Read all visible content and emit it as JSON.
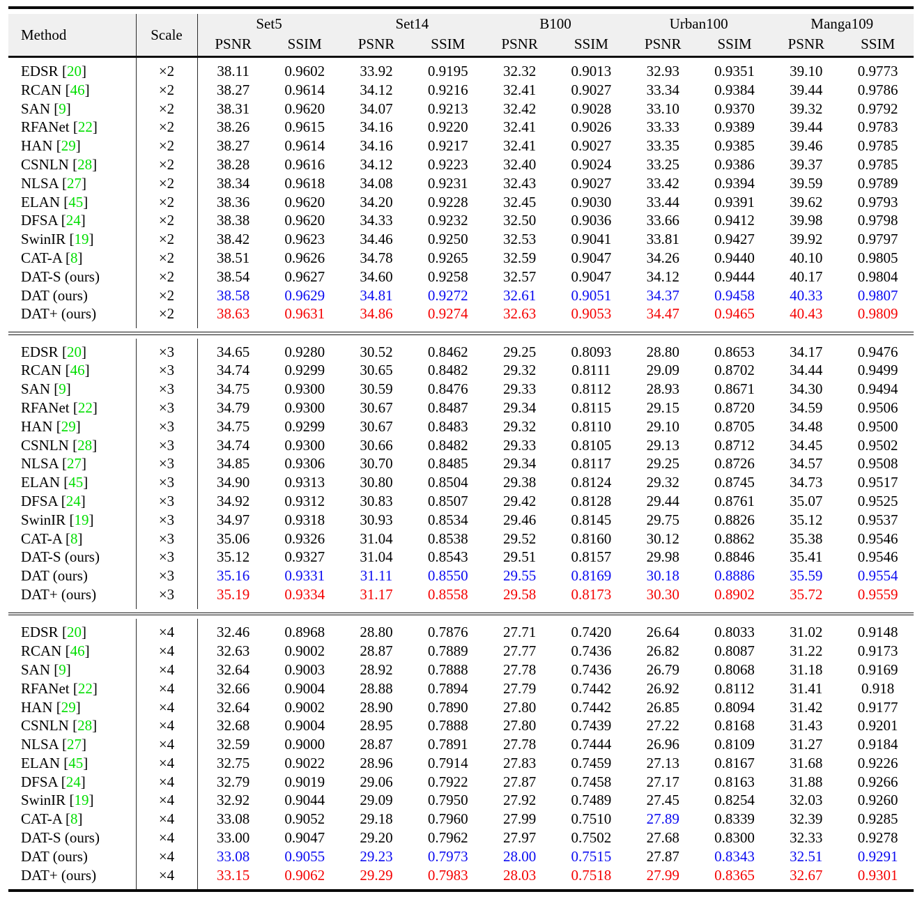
{
  "header": {
    "method": "Method",
    "scale": "Scale",
    "groups": [
      {
        "label": "Set5"
      },
      {
        "label": "Set14"
      },
      {
        "label": "B100"
      },
      {
        "label": "Urban100"
      },
      {
        "label": "Manga109"
      }
    ],
    "metrics": [
      "PSNR",
      "SSIM"
    ]
  },
  "colors": {
    "black": "#000000",
    "green": "#00de00",
    "blue": "#0a0af0",
    "red": "#f40000"
  },
  "blocks": [
    {
      "scale": "×2",
      "rows": [
        {
          "method": "EDSR",
          "cite": "20",
          "values": [
            "38.11",
            "0.9602",
            "33.92",
            "0.9195",
            "32.32",
            "0.9013",
            "32.93",
            "0.9351",
            "39.10",
            "0.9773"
          ]
        },
        {
          "method": "RCAN",
          "cite": "46",
          "values": [
            "38.27",
            "0.9614",
            "34.12",
            "0.9216",
            "32.41",
            "0.9027",
            "33.34",
            "0.9384",
            "39.44",
            "0.9786"
          ]
        },
        {
          "method": "SAN",
          "cite": "9",
          "values": [
            "38.31",
            "0.9620",
            "34.07",
            "0.9213",
            "32.42",
            "0.9028",
            "33.10",
            "0.9370",
            "39.32",
            "0.9792"
          ]
        },
        {
          "method": "RFANet",
          "cite": "22",
          "values": [
            "38.26",
            "0.9615",
            "34.16",
            "0.9220",
            "32.41",
            "0.9026",
            "33.33",
            "0.9389",
            "39.44",
            "0.9783"
          ]
        },
        {
          "method": "HAN",
          "cite": "29",
          "values": [
            "38.27",
            "0.9614",
            "34.16",
            "0.9217",
            "32.41",
            "0.9027",
            "33.35",
            "0.9385",
            "39.46",
            "0.9785"
          ]
        },
        {
          "method": "CSNLN",
          "cite": "28",
          "values": [
            "38.28",
            "0.9616",
            "34.12",
            "0.9223",
            "32.40",
            "0.9024",
            "33.25",
            "0.9386",
            "39.37",
            "0.9785"
          ]
        },
        {
          "method": "NLSA",
          "cite": "27",
          "values": [
            "38.34",
            "0.9618",
            "34.08",
            "0.9231",
            "32.43",
            "0.9027",
            "33.42",
            "0.9394",
            "39.59",
            "0.9789"
          ]
        },
        {
          "method": "ELAN",
          "cite": "45",
          "values": [
            "38.36",
            "0.9620",
            "34.20",
            "0.9228",
            "32.45",
            "0.9030",
            "33.44",
            "0.9391",
            "39.62",
            "0.9793"
          ]
        },
        {
          "method": "DFSA",
          "cite": "24",
          "values": [
            "38.38",
            "0.9620",
            "34.33",
            "0.9232",
            "32.50",
            "0.9036",
            "33.66",
            "0.9412",
            "39.98",
            "0.9798"
          ]
        },
        {
          "method": "SwinIR",
          "cite": "19",
          "values": [
            "38.42",
            "0.9623",
            "34.46",
            "0.9250",
            "32.53",
            "0.9041",
            "33.81",
            "0.9427",
            "39.92",
            "0.9797"
          ]
        },
        {
          "method": "CAT-A",
          "cite": "8",
          "values": [
            "38.51",
            "0.9626",
            "34.78",
            "0.9265",
            "32.59",
            "0.9047",
            "34.26",
            "0.9440",
            "40.10",
            "0.9805"
          ]
        },
        {
          "method": "DAT-S (ours)",
          "values": [
            "38.54",
            "0.9627",
            "34.60",
            "0.9258",
            "32.57",
            "0.9047",
            "34.12",
            "0.9444",
            "40.17",
            "0.9804"
          ]
        },
        {
          "method": "DAT (ours)",
          "row_color": "blue",
          "values": [
            "38.58",
            "0.9629",
            "34.81",
            "0.9272",
            "32.61",
            "0.9051",
            "34.37",
            "0.9458",
            "40.33",
            "0.9807"
          ]
        },
        {
          "method": "DAT+ (ours)",
          "row_color": "red",
          "values": [
            "38.63",
            "0.9631",
            "34.86",
            "0.9274",
            "32.63",
            "0.9053",
            "34.47",
            "0.9465",
            "40.43",
            "0.9809"
          ]
        }
      ]
    },
    {
      "scale": "×3",
      "rows": [
        {
          "method": "EDSR",
          "cite": "20",
          "values": [
            "34.65",
            "0.9280",
            "30.52",
            "0.8462",
            "29.25",
            "0.8093",
            "28.80",
            "0.8653",
            "34.17",
            "0.9476"
          ]
        },
        {
          "method": "RCAN",
          "cite": "46",
          "values": [
            "34.74",
            "0.9299",
            "30.65",
            "0.8482",
            "29.32",
            "0.8111",
            "29.09",
            "0.8702",
            "34.44",
            "0.9499"
          ]
        },
        {
          "method": "SAN",
          "cite": "9",
          "values": [
            "34.75",
            "0.9300",
            "30.59",
            "0.8476",
            "29.33",
            "0.8112",
            "28.93",
            "0.8671",
            "34.30",
            "0.9494"
          ]
        },
        {
          "method": "RFANet",
          "cite": "22",
          "values": [
            "34.79",
            "0.9300",
            "30.67",
            "0.8487",
            "29.34",
            "0.8115",
            "29.15",
            "0.8720",
            "34.59",
            "0.9506"
          ]
        },
        {
          "method": "HAN",
          "cite": "29",
          "values": [
            "34.75",
            "0.9299",
            "30.67",
            "0.8483",
            "29.32",
            "0.8110",
            "29.10",
            "0.8705",
            "34.48",
            "0.9500"
          ]
        },
        {
          "method": "CSNLN",
          "cite": "28",
          "values": [
            "34.74",
            "0.9300",
            "30.66",
            "0.8482",
            "29.33",
            "0.8105",
            "29.13",
            "0.8712",
            "34.45",
            "0.9502"
          ]
        },
        {
          "method": "NLSA",
          "cite": "27",
          "values": [
            "34.85",
            "0.9306",
            "30.70",
            "0.8485",
            "29.34",
            "0.8117",
            "29.25",
            "0.8726",
            "34.57",
            "0.9508"
          ]
        },
        {
          "method": "ELAN",
          "cite": "45",
          "values": [
            "34.90",
            "0.9313",
            "30.80",
            "0.8504",
            "29.38",
            "0.8124",
            "29.32",
            "0.8745",
            "34.73",
            "0.9517"
          ]
        },
        {
          "method": "DFSA",
          "cite": "24",
          "values": [
            "34.92",
            "0.9312",
            "30.83",
            "0.8507",
            "29.42",
            "0.8128",
            "29.44",
            "0.8761",
            "35.07",
            "0.9525"
          ]
        },
        {
          "method": "SwinIR",
          "cite": "19",
          "values": [
            "34.97",
            "0.9318",
            "30.93",
            "0.8534",
            "29.46",
            "0.8145",
            "29.75",
            "0.8826",
            "35.12",
            "0.9537"
          ]
        },
        {
          "method": "CAT-A",
          "cite": "8",
          "values": [
            "35.06",
            "0.9326",
            "31.04",
            "0.8538",
            "29.52",
            "0.8160",
            "30.12",
            "0.8862",
            "35.38",
            "0.9546"
          ]
        },
        {
          "method": "DAT-S (ours)",
          "values": [
            "35.12",
            "0.9327",
            "31.04",
            "0.8543",
            "29.51",
            "0.8157",
            "29.98",
            "0.8846",
            "35.41",
            "0.9546"
          ]
        },
        {
          "method": "DAT (ours)",
          "row_color": "blue",
          "values": [
            "35.16",
            "0.9331",
            "31.11",
            "0.8550",
            "29.55",
            "0.8169",
            "30.18",
            "0.8886",
            "35.59",
            "0.9554"
          ]
        },
        {
          "method": "DAT+ (ours)",
          "row_color": "red",
          "values": [
            "35.19",
            "0.9334",
            "31.17",
            "0.8558",
            "29.58",
            "0.8173",
            "30.30",
            "0.8902",
            "35.72",
            "0.9559"
          ]
        }
      ]
    },
    {
      "scale": "×4",
      "rows": [
        {
          "method": "EDSR",
          "cite": "20",
          "values": [
            "32.46",
            "0.8968",
            "28.80",
            "0.7876",
            "27.71",
            "0.7420",
            "26.64",
            "0.8033",
            "31.02",
            "0.9148"
          ]
        },
        {
          "method": "RCAN",
          "cite": "46",
          "values": [
            "32.63",
            "0.9002",
            "28.87",
            "0.7889",
            "27.77",
            "0.7436",
            "26.82",
            "0.8087",
            "31.22",
            "0.9173"
          ]
        },
        {
          "method": "SAN",
          "cite": "9",
          "values": [
            "32.64",
            "0.9003",
            "28.92",
            "0.7888",
            "27.78",
            "0.7436",
            "26.79",
            "0.8068",
            "31.18",
            "0.9169"
          ]
        },
        {
          "method": "RFANet",
          "cite": "22",
          "values": [
            "32.66",
            "0.9004",
            "28.88",
            "0.7894",
            "27.79",
            "0.7442",
            "26.92",
            "0.8112",
            "31.41",
            "0.918"
          ]
        },
        {
          "method": "HAN",
          "cite": "29",
          "values": [
            "32.64",
            "0.9002",
            "28.90",
            "0.7890",
            "27.80",
            "0.7442",
            "26.85",
            "0.8094",
            "31.42",
            "0.9177"
          ]
        },
        {
          "method": "CSNLN",
          "cite": "28",
          "values": [
            "32.68",
            "0.9004",
            "28.95",
            "0.7888",
            "27.80",
            "0.7439",
            "27.22",
            "0.8168",
            "31.43",
            "0.9201"
          ]
        },
        {
          "method": "NLSA",
          "cite": "27",
          "values": [
            "32.59",
            "0.9000",
            "28.87",
            "0.7891",
            "27.78",
            "0.7444",
            "26.96",
            "0.8109",
            "31.27",
            "0.9184"
          ]
        },
        {
          "method": "ELAN",
          "cite": "45",
          "values": [
            "32.75",
            "0.9022",
            "28.96",
            "0.7914",
            "27.83",
            "0.7459",
            "27.13",
            "0.8167",
            "31.68",
            "0.9226"
          ]
        },
        {
          "method": "DFSA",
          "cite": "24",
          "values": [
            "32.79",
            "0.9019",
            "29.06",
            "0.7922",
            "27.87",
            "0.7458",
            "27.17",
            "0.8163",
            "31.88",
            "0.9266"
          ]
        },
        {
          "method": "SwinIR",
          "cite": "19",
          "values": [
            "32.92",
            "0.9044",
            "29.09",
            "0.7950",
            "27.92",
            "0.7489",
            "27.45",
            "0.8254",
            "32.03",
            "0.9260"
          ]
        },
        {
          "method": "CAT-A",
          "cite": "8",
          "values": [
            "33.08",
            "0.9052",
            "29.18",
            "0.7960",
            "27.99",
            "0.7510",
            "27.89",
            "0.8339",
            "32.39",
            "0.9285"
          ],
          "cell_colors": [
            null,
            null,
            null,
            null,
            null,
            null,
            "blue",
            null,
            null,
            null
          ]
        },
        {
          "method": "DAT-S (ours)",
          "values": [
            "33.00",
            "0.9047",
            "29.20",
            "0.7962",
            "27.97",
            "0.7502",
            "27.68",
            "0.8300",
            "32.33",
            "0.9278"
          ]
        },
        {
          "method": "DAT (ours)",
          "row_color": "blue",
          "values": [
            "33.08",
            "0.9055",
            "29.23",
            "0.7973",
            "28.00",
            "0.7515",
            "27.87",
            "0.8343",
            "32.51",
            "0.9291"
          ],
          "cell_colors": [
            null,
            null,
            null,
            null,
            null,
            null,
            "black",
            null,
            null,
            null
          ]
        },
        {
          "method": "DAT+ (ours)",
          "row_color": "red",
          "values": [
            "33.15",
            "0.9062",
            "29.29",
            "0.7983",
            "28.03",
            "0.7518",
            "27.99",
            "0.8365",
            "32.67",
            "0.9301"
          ]
        }
      ]
    }
  ]
}
